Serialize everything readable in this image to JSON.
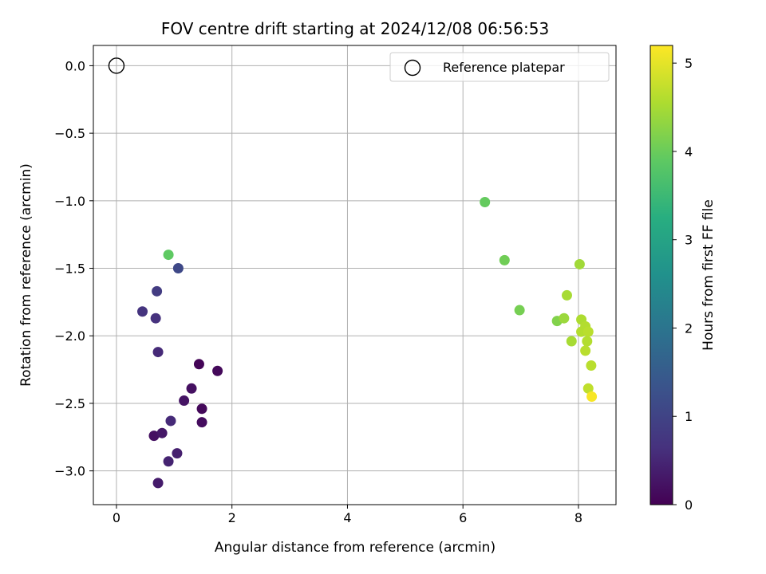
{
  "chart_data": {
    "type": "scatter",
    "title": "FOV centre drift starting at 2024/12/08 06:56:53",
    "xlabel": "Angular distance from reference (arcmin)",
    "ylabel": "Rotation from reference (arcmin)",
    "xlim": [
      -0.4,
      8.65
    ],
    "ylim": [
      -3.25,
      0.15
    ],
    "x_ticks": [
      0,
      2,
      4,
      6,
      8
    ],
    "x_tick_labels": [
      "0",
      "2",
      "4",
      "6",
      "8"
    ],
    "y_ticks": [
      0.0,
      -0.5,
      -1.0,
      -1.5,
      -2.0,
      -2.5,
      -3.0
    ],
    "y_tick_labels": [
      "0.0",
      "−0.5",
      "−1.0",
      "−1.5",
      "−2.0",
      "−2.5",
      "−3.0"
    ],
    "grid": true,
    "colormap": "viridis",
    "colorbar": {
      "label": "Hours from first FF file",
      "range": [
        0,
        5.2
      ],
      "ticks": [
        0,
        1,
        2,
        3,
        4,
        5
      ],
      "tick_labels": [
        "0",
        "1",
        "2",
        "3",
        "4",
        "5"
      ]
    },
    "reference": {
      "x": 0,
      "y": 0,
      "label": "Reference platepar"
    },
    "legend": {
      "placement": "top-right",
      "entries": [
        "Reference platepar"
      ]
    },
    "points": [
      {
        "x": 0.72,
        "y": -3.09,
        "h": 0.35
      },
      {
        "x": 0.9,
        "y": -2.93,
        "h": 0.45
      },
      {
        "x": 1.05,
        "y": -2.87,
        "h": 0.4
      },
      {
        "x": 0.65,
        "y": -2.74,
        "h": 0.2
      },
      {
        "x": 0.79,
        "y": -2.72,
        "h": 0.3
      },
      {
        "x": 0.94,
        "y": -2.63,
        "h": 0.55
      },
      {
        "x": 1.48,
        "y": -2.64,
        "h": 0.15
      },
      {
        "x": 1.48,
        "y": -2.54,
        "h": 0.1
      },
      {
        "x": 1.17,
        "y": -2.48,
        "h": 0.25
      },
      {
        "x": 1.3,
        "y": -2.39,
        "h": 0.2
      },
      {
        "x": 1.43,
        "y": -2.21,
        "h": 0.05
      },
      {
        "x": 1.75,
        "y": -2.26,
        "h": 0.1
      },
      {
        "x": 0.72,
        "y": -2.12,
        "h": 0.55
      },
      {
        "x": 0.68,
        "y": -1.87,
        "h": 0.65
      },
      {
        "x": 0.45,
        "y": -1.82,
        "h": 0.7
      },
      {
        "x": 0.7,
        "y": -1.67,
        "h": 0.85
      },
      {
        "x": 1.07,
        "y": -1.5,
        "h": 1.1
      },
      {
        "x": 0.9,
        "y": -1.4,
        "h": 3.9
      },
      {
        "x": 6.38,
        "y": -1.01,
        "h": 3.95
      },
      {
        "x": 6.72,
        "y": -1.44,
        "h": 4.05
      },
      {
        "x": 6.98,
        "y": -1.81,
        "h": 4.1
      },
      {
        "x": 7.63,
        "y": -1.89,
        "h": 4.2
      },
      {
        "x": 7.75,
        "y": -1.87,
        "h": 4.4
      },
      {
        "x": 7.8,
        "y": -1.7,
        "h": 4.5
      },
      {
        "x": 8.02,
        "y": -1.47,
        "h": 4.45
      },
      {
        "x": 7.88,
        "y": -2.04,
        "h": 4.5
      },
      {
        "x": 8.05,
        "y": -1.88,
        "h": 4.55
      },
      {
        "x": 8.05,
        "y": -1.97,
        "h": 4.6
      },
      {
        "x": 8.12,
        "y": -1.93,
        "h": 4.6
      },
      {
        "x": 8.17,
        "y": -1.97,
        "h": 4.65
      },
      {
        "x": 8.15,
        "y": -2.04,
        "h": 4.6
      },
      {
        "x": 8.12,
        "y": -2.11,
        "h": 4.65
      },
      {
        "x": 8.22,
        "y": -2.22,
        "h": 4.65
      },
      {
        "x": 8.17,
        "y": -2.39,
        "h": 4.7
      },
      {
        "x": 8.23,
        "y": -2.45,
        "h": 5.15
      }
    ]
  }
}
